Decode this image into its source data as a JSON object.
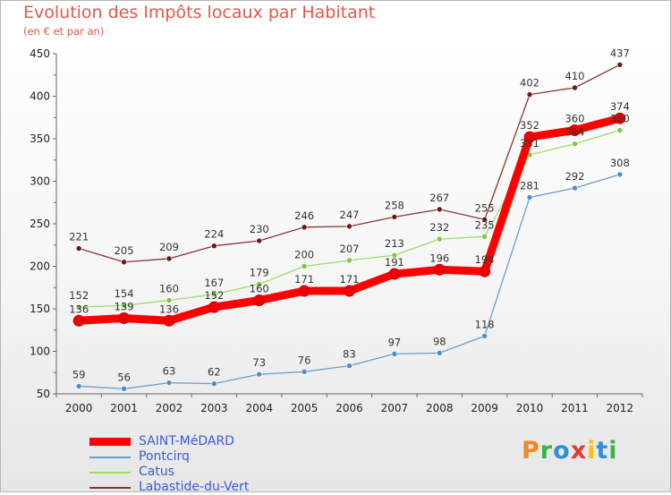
{
  "header": {
    "title": "Evolution des Impôts locaux par Habitant",
    "subtitle": "(en € et par an)"
  },
  "logo": {
    "text": "Proxiti",
    "letters": [
      "P",
      "r",
      "o",
      "x",
      "i",
      "t",
      "i"
    ]
  },
  "chart_data": {
    "type": "line",
    "title": "Evolution des Impôts locaux par Habitant",
    "subtitle": "(en € et par an)",
    "xlabel": "",
    "ylabel": "",
    "ylim": [
      50,
      450
    ],
    "yticks": [
      50,
      100,
      150,
      200,
      250,
      300,
      350,
      400,
      450
    ],
    "categories": [
      "2000",
      "2001",
      "2002",
      "2003",
      "2004",
      "2005",
      "2006",
      "2007",
      "2008",
      "2009",
      "2010",
      "2011",
      "2012"
    ],
    "grid": false,
    "legend_position": "bottom-left",
    "series": [
      {
        "name": "SAINT-MéDARD",
        "color": "#ff0000",
        "marker_color": "#ee0000",
        "values": [
          136,
          139,
          136,
          152,
          160,
          171,
          171,
          191,
          196,
          194,
          352,
          360,
          374
        ]
      },
      {
        "name": "Pontcirq",
        "color": "#6e9ec8",
        "marker_color": "#4a8ed0",
        "values": [
          59,
          56,
          63,
          62,
          73,
          76,
          83,
          97,
          98,
          118,
          281,
          292,
          308
        ]
      },
      {
        "name": "Catus",
        "color": "#9cdd6a",
        "marker_color": "#7ac943",
        "values": [
          152,
          154,
          160,
          167,
          179,
          200,
          207,
          213,
          232,
          235,
          331,
          344,
          360
        ]
      },
      {
        "name": "Labastide-du-Vert",
        "color": "#8a3535",
        "marker_color": "#6b1818",
        "values": [
          221,
          205,
          209,
          224,
          230,
          246,
          247,
          258,
          267,
          255,
          402,
          410,
          437
        ]
      }
    ]
  }
}
